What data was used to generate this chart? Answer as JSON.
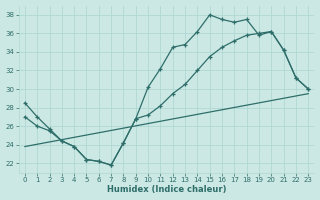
{
  "xlabel": "Humidex (Indice chaleur)",
  "bg_color": "#cce8e4",
  "grid_color": "#b0d8d4",
  "line_color": "#2e6e6a",
  "xlim": [
    -0.5,
    23.5
  ],
  "ylim": [
    21.0,
    39.0
  ],
  "yticks": [
    22,
    24,
    26,
    28,
    30,
    32,
    34,
    36,
    38
  ],
  "xticks": [
    0,
    1,
    2,
    3,
    4,
    5,
    6,
    7,
    8,
    9,
    10,
    11,
    12,
    13,
    14,
    15,
    16,
    17,
    18,
    19,
    20,
    21,
    22,
    23
  ],
  "line1_x": [
    0,
    1,
    2,
    3,
    4,
    5,
    6,
    7,
    8,
    9,
    10,
    11,
    12,
    13,
    14,
    15,
    16,
    17,
    18,
    19,
    20,
    21,
    22,
    23
  ],
  "line1_y": [
    28.5,
    27.0,
    25.7,
    24.4,
    23.8,
    22.4,
    22.2,
    21.8,
    24.2,
    26.8,
    30.2,
    32.2,
    34.5,
    34.8,
    36.2,
    38.0,
    37.5,
    37.2,
    37.5,
    35.8,
    36.2,
    34.2,
    31.2,
    30.0
  ],
  "line2_x": [
    0,
    1,
    2,
    3,
    4,
    5,
    6,
    7,
    8,
    9,
    10,
    11,
    12,
    13,
    14,
    15,
    16,
    17,
    18,
    19,
    20,
    21,
    22,
    23
  ],
  "line2_y": [
    27.0,
    26.0,
    25.5,
    24.4,
    23.8,
    22.4,
    22.2,
    21.8,
    24.2,
    26.8,
    27.2,
    28.2,
    29.5,
    30.5,
    32.0,
    33.5,
    34.5,
    35.2,
    35.8,
    36.0,
    36.2,
    34.2,
    31.2,
    30.0
  ],
  "line3_x": [
    0,
    23
  ],
  "line3_y": [
    23.8,
    29.5
  ]
}
